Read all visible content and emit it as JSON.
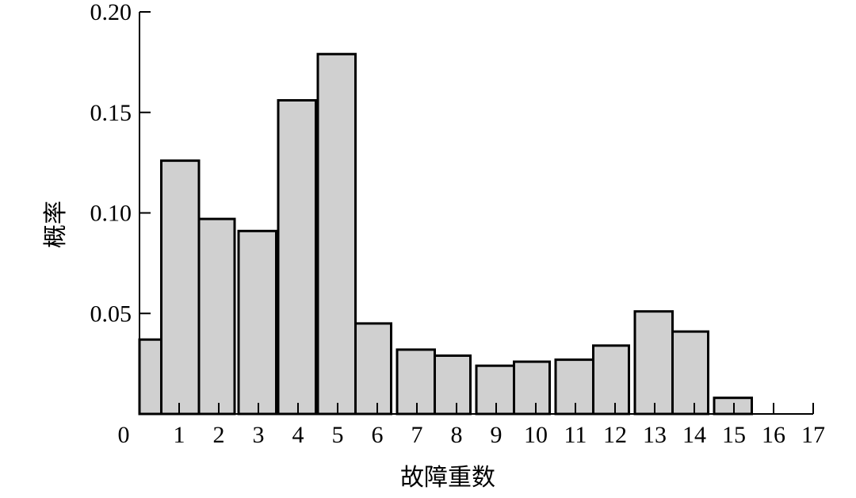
{
  "chart_data": {
    "type": "bar",
    "xlabel": "故障重数",
    "ylabel": "概率",
    "ylim": [
      0,
      0.2
    ],
    "xlim": [
      0,
      17
    ],
    "yticks": [
      "0.05",
      "0.10",
      "0.15",
      "0.20"
    ],
    "xticks": [
      "0",
      "1",
      "2",
      "3",
      "4",
      "5",
      "6",
      "7",
      "8",
      "9",
      "10",
      "11",
      "12",
      "13",
      "14",
      "15",
      "16",
      "17"
    ],
    "bars": [
      {
        "x0": 0.0,
        "x1": 0.55,
        "value": 0.037
      },
      {
        "x0": 0.55,
        "x1": 1.5,
        "value": 0.126
      },
      {
        "x0": 1.5,
        "x1": 2.4,
        "value": 0.097
      },
      {
        "x0": 2.5,
        "x1": 3.45,
        "value": 0.091
      },
      {
        "x0": 3.5,
        "x1": 4.45,
        "value": 0.156
      },
      {
        "x0": 4.5,
        "x1": 5.45,
        "value": 0.179
      },
      {
        "x0": 5.45,
        "x1": 6.35,
        "value": 0.045
      },
      {
        "x0": 6.5,
        "x1": 7.45,
        "value": 0.032
      },
      {
        "x0": 7.45,
        "x1": 8.35,
        "value": 0.029
      },
      {
        "x0": 8.5,
        "x1": 9.45,
        "value": 0.024
      },
      {
        "x0": 9.45,
        "x1": 10.35,
        "value": 0.026
      },
      {
        "x0": 10.5,
        "x1": 11.45,
        "value": 0.027
      },
      {
        "x0": 11.45,
        "x1": 12.35,
        "value": 0.034
      },
      {
        "x0": 12.5,
        "x1": 13.45,
        "value": 0.051
      },
      {
        "x0": 13.45,
        "x1": 14.35,
        "value": 0.041
      },
      {
        "x0": 14.5,
        "x1": 15.45,
        "value": 0.008
      }
    ]
  }
}
